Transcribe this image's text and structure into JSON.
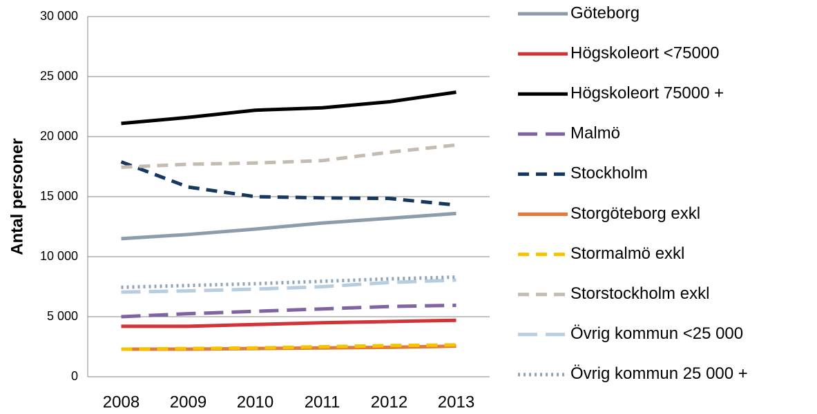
{
  "chart_data": {
    "type": "line",
    "y_label": "Antal personer",
    "categories": [
      "2008",
      "2009",
      "2010",
      "2011",
      "2012",
      "2013"
    ],
    "ylim": [
      0,
      30000
    ],
    "yticks": [
      0,
      {
        "value": 5000,
        "label": "5 000"
      },
      {
        "value": 10000,
        "label": "10 000"
      },
      {
        "value": 15000,
        "label": "15 000"
      },
      {
        "value": 20000,
        "label": "20 000"
      },
      {
        "value": 25000,
        "label": "25 000"
      },
      {
        "value": 30000,
        "label": "30 000"
      }
    ],
    "grid": true,
    "legend": "right",
    "series": [
      {
        "name": "Göteborg",
        "color": "#8c9cab",
        "dash": "solid",
        "values": [
          11500,
          11850,
          12300,
          12800,
          13200,
          13600
        ]
      },
      {
        "name": "Högskoleort <75000",
        "color": "#d03438",
        "dash": "solid",
        "values": [
          4200,
          4200,
          4350,
          4500,
          4600,
          4700
        ]
      },
      {
        "name": "Högskoleort 75000 +",
        "color": "#000000",
        "dash": "solid",
        "values": [
          21100,
          21600,
          22200,
          22400,
          22900,
          23700
        ]
      },
      {
        "name": "Malmö",
        "color": "#8064a2",
        "dash": "longdash",
        "values": [
          5000,
          5250,
          5450,
          5650,
          5850,
          5950
        ]
      },
      {
        "name": "Stockholm",
        "color": "#17375e",
        "dash": "dash",
        "values": [
          17900,
          15800,
          15000,
          14900,
          14850,
          14300
        ]
      },
      {
        "name": "Storgöteborg exkl",
        "color": "#e07b39",
        "dash": "solid",
        "values": [
          2300,
          2300,
          2350,
          2400,
          2450,
          2550
        ]
      },
      {
        "name": "Stormalmö exkl",
        "color": "#f5c400",
        "dash": "dash",
        "values": [
          2300,
          2350,
          2400,
          2500,
          2600,
          2650
        ]
      },
      {
        "name": "Storstockholm exkl",
        "color": "#c4bcb0",
        "dash": "dash",
        "values": [
          17450,
          17700,
          17800,
          18000,
          18700,
          19300
        ]
      },
      {
        "name": "Övrig kommun <25 000",
        "color": "#b9cde0",
        "dash": "longdash",
        "values": [
          7050,
          7150,
          7300,
          7500,
          7850,
          8050
        ]
      },
      {
        "name": "Övrig kommun 25 000 +",
        "color": "#8ea4b8",
        "dash": "dot",
        "values": [
          7450,
          7600,
          7750,
          7950,
          8150,
          8300
        ]
      }
    ]
  }
}
